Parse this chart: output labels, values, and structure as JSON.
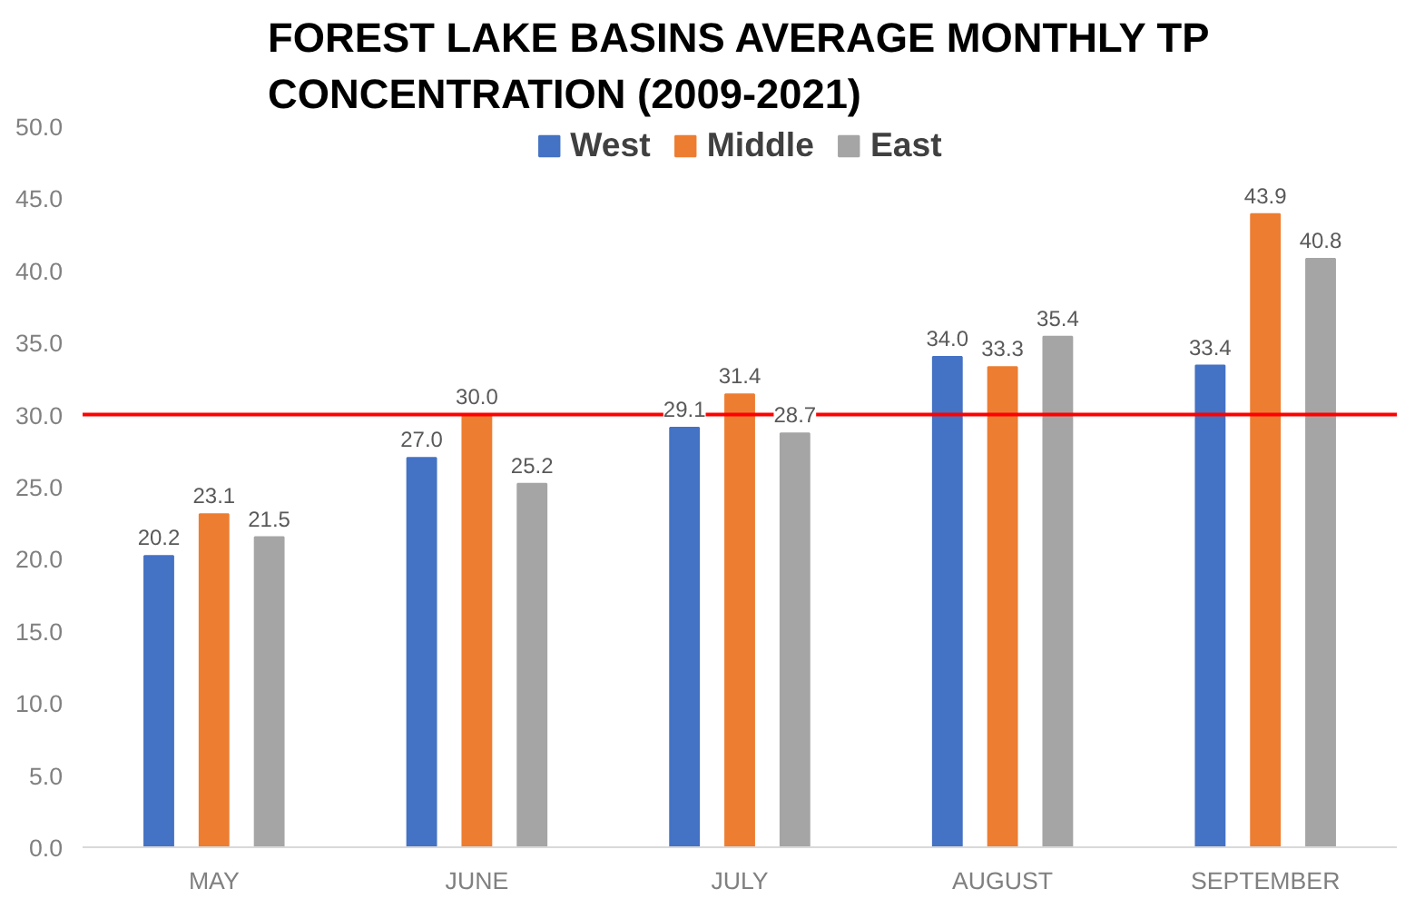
{
  "chart_data": {
    "type": "bar",
    "title": "FOREST LAKE BASINS AVERAGE MONTHLY TP CONCENTRATION (2009-2021)",
    "categories": [
      "MAY",
      "JUNE",
      "JULY",
      "AUGUST",
      "SEPTEMBER"
    ],
    "series": [
      {
        "name": "West",
        "color": "#4472c4",
        "values": [
          20.2,
          27.0,
          29.1,
          34.0,
          33.4
        ],
        "value_labels": [
          "20.2",
          "27.0",
          "29.1",
          "34.0",
          "33.4"
        ]
      },
      {
        "name": "Middle",
        "color": "#ed7d31",
        "values": [
          23.1,
          30.0,
          31.4,
          33.3,
          43.9
        ],
        "value_labels": [
          "23.1",
          "30.0",
          "31.4",
          "33.3",
          "43.9"
        ]
      },
      {
        "name": "East",
        "color": "#a5a5a5",
        "values": [
          21.5,
          25.2,
          28.7,
          35.4,
          40.8
        ],
        "value_labels": [
          "21.5",
          "25.2",
          "28.7",
          "35.4",
          "40.8"
        ]
      }
    ],
    "ylim": [
      0,
      50
    ],
    "yticks": [
      {
        "value": 0,
        "label": "0.0"
      },
      {
        "value": 5,
        "label": "5.0"
      },
      {
        "value": 10,
        "label": "10.0"
      },
      {
        "value": 15,
        "label": "15.0"
      },
      {
        "value": 20,
        "label": "20.0"
      },
      {
        "value": 25,
        "label": "25.0"
      },
      {
        "value": 30,
        "label": "30.0"
      },
      {
        "value": 35,
        "label": "35.0"
      },
      {
        "value": 40,
        "label": "40.0"
      },
      {
        "value": 45,
        "label": "45.0"
      },
      {
        "value": 50,
        "label": "50.0"
      }
    ],
    "ref_lines": [
      {
        "axis": "y",
        "value": 30,
        "color": "#ff0000"
      }
    ],
    "legend": "top",
    "grid": false
  }
}
